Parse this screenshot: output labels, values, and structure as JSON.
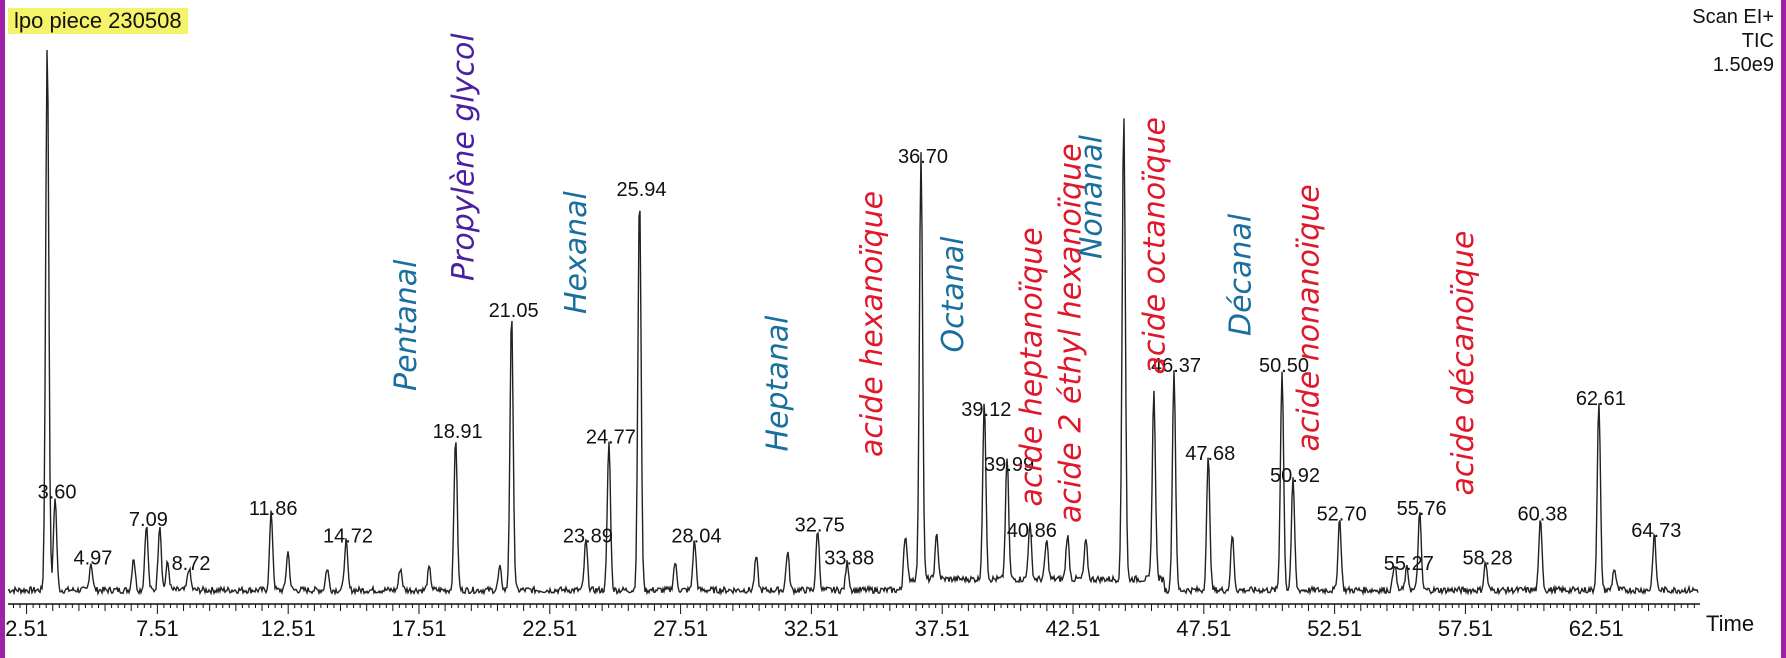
{
  "header": {
    "sample": "lpo piece 230508",
    "scan_mode": "Scan EI+",
    "signal": "TIC",
    "scale": "1.50e9"
  },
  "colors": {
    "frame": "#a020a8",
    "highlight": "#f4f36a",
    "aldehyde": "#1b6f9e",
    "acid": "#e0182c",
    "glycol": "#4a1fa0",
    "trace": "#222222"
  },
  "chart_data": {
    "type": "line",
    "title": "",
    "xlabel": "Time",
    "ylabel": "",
    "xlim": [
      1.8,
      66.4
    ],
    "ylim": [
      0,
      1.0
    ],
    "x_ticks": [
      "2.51",
      "7.51",
      "12.51",
      "17.51",
      "22.51",
      "27.51",
      "32.51",
      "37.51",
      "42.51",
      "47.51",
      "52.51",
      "57.51",
      "62.51"
    ],
    "peaks": [
      {
        "rt": 3.3,
        "height": 1.0,
        "label": ""
      },
      {
        "rt": 3.6,
        "height": 0.17,
        "label": "3.60"
      },
      {
        "rt": 4.97,
        "height": 0.05,
        "label": "4.97"
      },
      {
        "rt": 6.6,
        "height": 0.06,
        "label": ""
      },
      {
        "rt": 7.09,
        "height": 0.12,
        "label": "7.09"
      },
      {
        "rt": 7.6,
        "height": 0.12,
        "label": ""
      },
      {
        "rt": 7.9,
        "height": 0.05,
        "label": ""
      },
      {
        "rt": 8.72,
        "height": 0.04,
        "label": "8.72"
      },
      {
        "rt": 11.86,
        "height": 0.14,
        "label": "11.86"
      },
      {
        "rt": 12.5,
        "height": 0.07,
        "label": ""
      },
      {
        "rt": 14.0,
        "height": 0.04,
        "label": ""
      },
      {
        "rt": 14.72,
        "height": 0.09,
        "label": "14.72"
      },
      {
        "rt": 16.8,
        "height": 0.04,
        "label": ""
      },
      {
        "rt": 17.9,
        "height": 0.04,
        "label": ""
      },
      {
        "rt": 18.91,
        "height": 0.28,
        "label": "18.91"
      },
      {
        "rt": 20.6,
        "height": 0.04,
        "label": ""
      },
      {
        "rt": 21.05,
        "height": 0.5,
        "label": "21.05"
      },
      {
        "rt": 23.89,
        "height": 0.09,
        "label": "23.89"
      },
      {
        "rt": 24.77,
        "height": 0.27,
        "label": "24.77"
      },
      {
        "rt": 25.94,
        "height": 0.72,
        "label": "25.94"
      },
      {
        "rt": 27.3,
        "height": 0.05,
        "label": ""
      },
      {
        "rt": 28.04,
        "height": 0.09,
        "label": "28.04"
      },
      {
        "rt": 30.4,
        "height": 0.06,
        "label": ""
      },
      {
        "rt": 31.6,
        "height": 0.07,
        "label": ""
      },
      {
        "rt": 32.75,
        "height": 0.11,
        "label": "32.75"
      },
      {
        "rt": 33.88,
        "height": 0.05,
        "label": "33.88"
      },
      {
        "rt": 36.1,
        "height": 0.08,
        "label": ""
      },
      {
        "rt": 36.7,
        "height": 0.78,
        "label": "36.70"
      },
      {
        "rt": 37.3,
        "height": 0.08,
        "label": ""
      },
      {
        "rt": 39.12,
        "height": 0.32,
        "label": "39.12"
      },
      {
        "rt": 39.99,
        "height": 0.22,
        "label": "39.99"
      },
      {
        "rt": 40.86,
        "height": 0.1,
        "label": "40.86"
      },
      {
        "rt": 41.5,
        "height": 0.07,
        "label": ""
      },
      {
        "rt": 42.3,
        "height": 0.08,
        "label": ""
      },
      {
        "rt": 43.0,
        "height": 0.07,
        "label": ""
      },
      {
        "rt": 44.45,
        "height": 0.85,
        "label": ""
      },
      {
        "rt": 45.6,
        "height": 0.34,
        "label": ""
      },
      {
        "rt": 46.37,
        "height": 0.4,
        "label": "46.37"
      },
      {
        "rt": 47.68,
        "height": 0.24,
        "label": "47.68"
      },
      {
        "rt": 48.6,
        "height": 0.1,
        "label": ""
      },
      {
        "rt": 50.5,
        "height": 0.4,
        "label": "50.50"
      },
      {
        "rt": 50.92,
        "height": 0.2,
        "label": "50.92"
      },
      {
        "rt": 52.7,
        "height": 0.13,
        "label": "52.70"
      },
      {
        "rt": 54.8,
        "height": 0.05,
        "label": ""
      },
      {
        "rt": 55.27,
        "height": 0.04,
        "label": "55.27"
      },
      {
        "rt": 55.76,
        "height": 0.14,
        "label": "55.76"
      },
      {
        "rt": 58.28,
        "height": 0.05,
        "label": "58.28"
      },
      {
        "rt": 60.38,
        "height": 0.13,
        "label": "60.38"
      },
      {
        "rt": 62.61,
        "height": 0.34,
        "label": "62.61"
      },
      {
        "rt": 63.2,
        "height": 0.04,
        "label": ""
      },
      {
        "rt": 64.73,
        "height": 0.1,
        "label": "64.73"
      }
    ],
    "annotations": [
      {
        "text": "Pentanal",
        "rt": 17.4,
        "height": 0.38,
        "color": "aldehyde"
      },
      {
        "text": "Propylène glycol",
        "rt": 19.6,
        "height": 0.58,
        "color": "glycol"
      },
      {
        "text": "Hexanal",
        "rt": 23.9,
        "height": 0.52,
        "color": "aldehyde"
      },
      {
        "text": "Heptanal",
        "rt": 31.6,
        "height": 0.27,
        "color": "aldehyde"
      },
      {
        "text": "acide hexanoïque",
        "rt": 35.2,
        "height": 0.26,
        "color": "acid"
      },
      {
        "text": "Octanal",
        "rt": 38.3,
        "height": 0.45,
        "color": "aldehyde"
      },
      {
        "text": "acide heptanoïque",
        "rt": 41.3,
        "height": 0.17,
        "color": "acid"
      },
      {
        "text": "acide 2 éthyl hexanoïque",
        "rt": 42.8,
        "height": 0.14,
        "color": "acid"
      },
      {
        "text": "Nonanal",
        "rt": 43.6,
        "height": 0.62,
        "color": "aldehyde"
      },
      {
        "text": "acide octanoïque",
        "rt": 46.0,
        "height": 0.41,
        "color": "acid"
      },
      {
        "text": "Décanal",
        "rt": 49.3,
        "height": 0.48,
        "color": "aldehyde"
      },
      {
        "text": "acide nonanoïque",
        "rt": 51.9,
        "height": 0.27,
        "color": "acid"
      },
      {
        "text": "acide décanoïque",
        "rt": 57.8,
        "height": 0.19,
        "color": "acid"
      }
    ]
  }
}
